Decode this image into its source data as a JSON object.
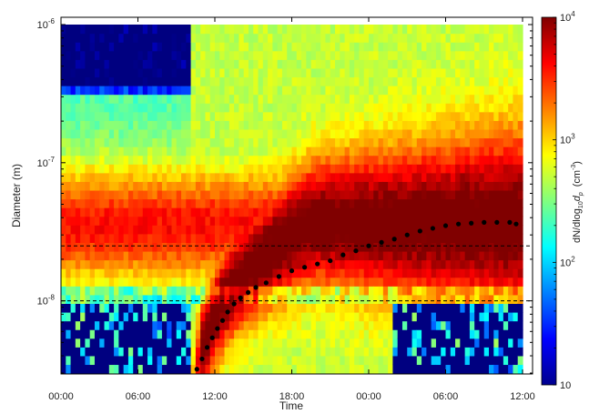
{
  "chart_data": {
    "type": "heatmap",
    "title": "",
    "xlabel": "Time",
    "ylabel": "Diameter  (m)",
    "x_ticks": [
      "00:00",
      "06:00",
      "12:00",
      "18:00",
      "00:00",
      "06:00",
      "12:00"
    ],
    "x_range_hours": [
      0,
      36
    ],
    "y_scale": "log",
    "y_range_m": [
      3e-09,
      1e-06
    ],
    "y_ticks": [
      {
        "value": 1e-08,
        "base": "10",
        "exp": "-8"
      },
      {
        "value": 1e-07,
        "base": "10",
        "exp": "-7"
      },
      {
        "value": 1e-06,
        "base": "10",
        "exp": "-6"
      }
    ],
    "colorbar": {
      "label_main": "dN/dlog",
      "label_sub": "10",
      "label_var": "d",
      "label_var_sub": "p",
      "label_unit": "(cm",
      "label_unit_exp": "-3",
      "label_unit_close": ")",
      "scale": "log",
      "range": [
        10,
        10000
      ],
      "ticks": [
        {
          "value": 10,
          "text": "10",
          "exp": ""
        },
        {
          "value": 100,
          "text": "10",
          "exp": "2"
        },
        {
          "value": 1000,
          "text": "10",
          "exp": "3"
        },
        {
          "value": 10000,
          "text": "10",
          "exp": "4"
        }
      ],
      "colormap": "jet"
    },
    "reference_lines_m": [
      1e-08,
      2.5e-08
    ],
    "mode_diameter_series": {
      "name": "",
      "x_hours": [
        10.6,
        11.0,
        11.4,
        11.8,
        12.2,
        12.6,
        13.0,
        13.5,
        14.0,
        14.6,
        15.2,
        16.0,
        17.0,
        18.0,
        19.0,
        20.0,
        21.0,
        22.0,
        23.0,
        24.0,
        25.0,
        26.0,
        27.0,
        28.0,
        29.0,
        30.0,
        31.0,
        32.0,
        33.0,
        34.0,
        35.0,
        35.5
      ],
      "y_m": [
        3.2e-09,
        3.8e-09,
        4.6e-09,
        5.4e-09,
        6.3e-09,
        7.2e-09,
        8.3e-09,
        9.5e-09,
        1.05e-08,
        1.15e-08,
        1.25e-08,
        1.35e-08,
        1.5e-08,
        1.65e-08,
        1.75e-08,
        1.85e-08,
        1.95e-08,
        2.15e-08,
        2.3e-08,
        2.5e-08,
        2.65e-08,
        2.8e-08,
        3e-08,
        3.2e-08,
        3.35e-08,
        3.5e-08,
        3.6e-08,
        3.65e-08,
        3.7e-08,
        3.7e-08,
        3.7e-08,
        3.6e-08
      ]
    },
    "legend": "none",
    "grid": false
  }
}
